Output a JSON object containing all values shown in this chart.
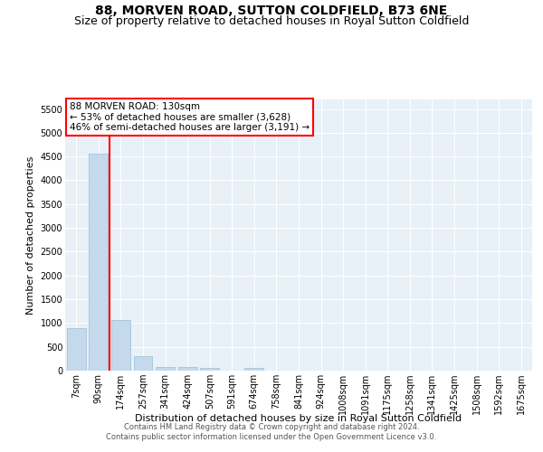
{
  "title": "88, MORVEN ROAD, SUTTON COLDFIELD, B73 6NE",
  "subtitle": "Size of property relative to detached houses in Royal Sutton Coldfield",
  "xlabel": "Distribution of detached houses by size in Royal Sutton Coldfield",
  "ylabel": "Number of detached properties",
  "footer_line1": "Contains HM Land Registry data © Crown copyright and database right 2024.",
  "footer_line2": "Contains public sector information licensed under the Open Government Licence v3.0.",
  "categories": [
    "7sqm",
    "90sqm",
    "174sqm",
    "257sqm",
    "341sqm",
    "424sqm",
    "507sqm",
    "591sqm",
    "674sqm",
    "758sqm",
    "841sqm",
    "924sqm",
    "1008sqm",
    "1091sqm",
    "1175sqm",
    "1258sqm",
    "1341sqm",
    "1425sqm",
    "1508sqm",
    "1592sqm",
    "1675sqm"
  ],
  "values": [
    900,
    4560,
    1060,
    300,
    85,
    70,
    55,
    0,
    55,
    0,
    0,
    0,
    0,
    0,
    0,
    0,
    0,
    0,
    0,
    0,
    0
  ],
  "bar_color": "#c5d9ec",
  "bar_edge_color": "#9bbdd4",
  "red_line_index": 1.5,
  "annotation_text": "88 MORVEN ROAD: 130sqm\n← 53% of detached houses are smaller (3,628)\n46% of semi-detached houses are larger (3,191) →",
  "annotation_box_color": "white",
  "annotation_box_edge_color": "red",
  "ylim": [
    0,
    5700
  ],
  "yticks": [
    0,
    500,
    1000,
    1500,
    2000,
    2500,
    3000,
    3500,
    4000,
    4500,
    5000,
    5500
  ],
  "bg_color": "#e8f0f8",
  "grid_color": "white",
  "title_fontsize": 10,
  "subtitle_fontsize": 9,
  "xlabel_fontsize": 8,
  "ylabel_fontsize": 8,
  "tick_fontsize": 7,
  "annotation_fontsize": 7.5,
  "footer_fontsize": 6
}
